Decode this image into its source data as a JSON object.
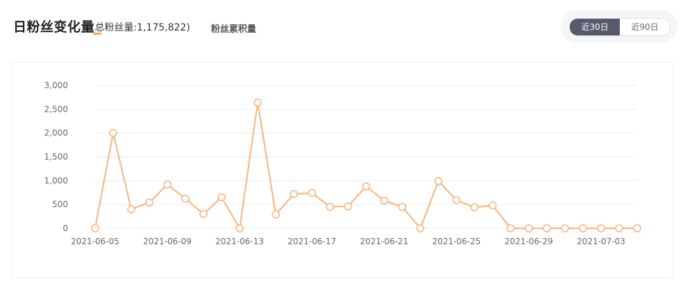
{
  "header": {
    "title": "日粉丝变化量",
    "total_fans": "(总粉丝量:1,175,822)",
    "cumulative_tab": "粉丝累积量",
    "range_options": [
      "近30日",
      "近90日"
    ],
    "active_range": "近30日"
  },
  "colors": {
    "line": "#f7b27a",
    "active_button": "#555a6e",
    "grid": "#eeeeee",
    "accent_underline": "#f5a55a"
  },
  "chart_data": {
    "type": "line",
    "title": "",
    "xlabel": "",
    "ylabel": "",
    "ylim": [
      0,
      3000
    ],
    "y_ticks": [
      "0",
      "500",
      "1,000",
      "1,500",
      "2,000",
      "2,500",
      "3,000"
    ],
    "x_tick_labels": [
      "2021-06-05",
      "2021-06-09",
      "2021-06-13",
      "2021-06-17",
      "2021-06-21",
      "2021-06-25",
      "2021-06-29",
      "2021-07-03"
    ],
    "x": [
      "2021-06-05",
      "2021-06-06",
      "2021-06-07",
      "2021-06-08",
      "2021-06-09",
      "2021-06-10",
      "2021-06-11",
      "2021-06-12",
      "2021-06-13",
      "2021-06-14",
      "2021-06-15",
      "2021-06-16",
      "2021-06-17",
      "2021-06-18",
      "2021-06-19",
      "2021-06-20",
      "2021-06-21",
      "2021-06-22",
      "2021-06-23",
      "2021-06-24",
      "2021-06-25",
      "2021-06-26",
      "2021-06-27",
      "2021-06-28",
      "2021-06-29",
      "2021-06-30",
      "2021-07-01",
      "2021-07-02",
      "2021-07-03",
      "2021-07-04",
      "2021-07-05"
    ],
    "series": [
      {
        "values": [
          0,
          2000,
          400,
          540,
          920,
          620,
          300,
          650,
          0,
          2640,
          290,
          720,
          740,
          450,
          460,
          880,
          580,
          450,
          0,
          990,
          590,
          440,
          480,
          0,
          0,
          0,
          0,
          0,
          0,
          0,
          0
        ]
      }
    ],
    "grid": true,
    "legend": "none"
  }
}
